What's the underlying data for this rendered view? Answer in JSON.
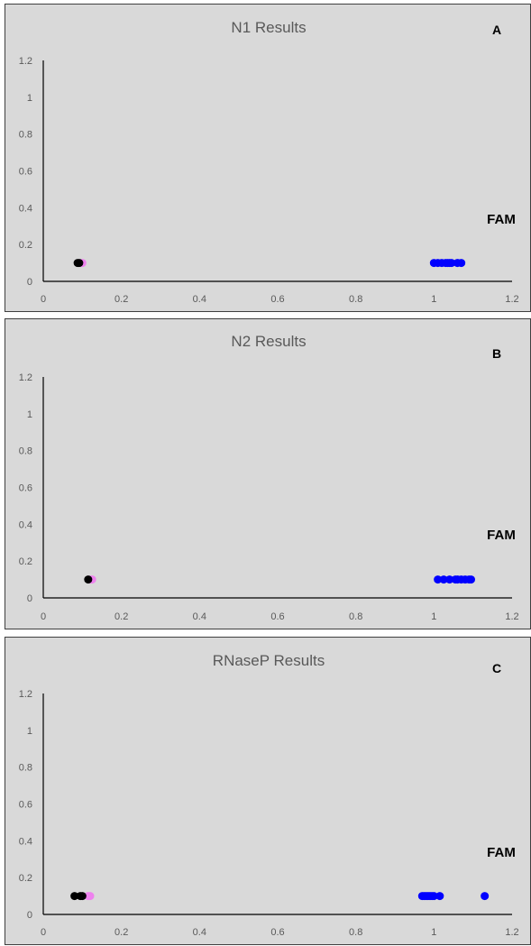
{
  "colors": {
    "background": "#d9d9d9",
    "axis": "#000000",
    "tick_text": "#595959"
  },
  "chart_data": [
    {
      "type": "scatter",
      "title": "N1 Results",
      "panel_label": "A",
      "annotation": "FAM",
      "xlim": [
        0,
        1.2
      ],
      "ylim": [
        0,
        1.2
      ],
      "x_ticks": [
        "0",
        "0.2",
        "0.4",
        "0.6",
        "0.8",
        "1",
        "1.2"
      ],
      "y_ticks": [
        "0",
        "0.2",
        "0.4",
        "0.6",
        "0.8",
        "1",
        "1.2"
      ],
      "grid": false,
      "series": [
        {
          "color": "#ee82ee",
          "points": [
            [
              0.1,
              0.1
            ],
            [
              0.095,
              0.1
            ]
          ]
        },
        {
          "color": "#000000",
          "points": [
            [
              0.088,
              0.1
            ],
            [
              0.092,
              0.1
            ]
          ]
        },
        {
          "color": "#0000ff",
          "points": [
            [
              1.0,
              0.1
            ],
            [
              1.01,
              0.1
            ],
            [
              1.02,
              0.1
            ],
            [
              1.03,
              0.1
            ],
            [
              1.035,
              0.1
            ],
            [
              1.04,
              0.1
            ],
            [
              1.045,
              0.1
            ],
            [
              1.06,
              0.1
            ],
            [
              1.07,
              0.1
            ]
          ]
        }
      ]
    },
    {
      "type": "scatter",
      "title": "N2 Results",
      "panel_label": "B",
      "annotation": "FAM",
      "xlim": [
        0,
        1.2
      ],
      "ylim": [
        0,
        1.2
      ],
      "x_ticks": [
        "0",
        "0.2",
        "0.4",
        "0.6",
        "0.8",
        "1",
        "1.2"
      ],
      "y_ticks": [
        "0",
        "0.2",
        "0.4",
        "0.6",
        "0.8",
        "1",
        "1.2"
      ],
      "grid": false,
      "series": [
        {
          "color": "#ee82ee",
          "points": [
            [
              0.125,
              0.1
            ],
            [
              0.12,
              0.1
            ]
          ]
        },
        {
          "color": "#000000",
          "points": [
            [
              0.115,
              0.1
            ]
          ]
        },
        {
          "color": "#0000ff",
          "points": [
            [
              1.01,
              0.1
            ],
            [
              1.025,
              0.1
            ],
            [
              1.04,
              0.1
            ],
            [
              1.055,
              0.1
            ],
            [
              1.06,
              0.1
            ],
            [
              1.07,
              0.1
            ],
            [
              1.08,
              0.1
            ],
            [
              1.09,
              0.1
            ],
            [
              1.095,
              0.1
            ]
          ]
        }
      ]
    },
    {
      "type": "scatter",
      "title": "RNaseP Results",
      "panel_label": "C",
      "annotation": "FAM",
      "xlim": [
        0,
        1.2
      ],
      "ylim": [
        0,
        1.2
      ],
      "x_ticks": [
        "0",
        "0.2",
        "0.4",
        "0.6",
        "0.8",
        "1",
        "1.2"
      ],
      "y_ticks": [
        "0",
        "0.2",
        "0.4",
        "0.6",
        "0.8",
        "1",
        "1.2"
      ],
      "grid": false,
      "series": [
        {
          "color": "#ee82ee",
          "points": [
            [
              0.12,
              0.1
            ],
            [
              0.115,
              0.1
            ]
          ]
        },
        {
          "color": "#000000",
          "points": [
            [
              0.08,
              0.1
            ],
            [
              0.095,
              0.1
            ],
            [
              0.1,
              0.1
            ]
          ]
        },
        {
          "color": "#0000ff",
          "points": [
            [
              0.97,
              0.1
            ],
            [
              0.975,
              0.1
            ],
            [
              0.98,
              0.1
            ],
            [
              0.985,
              0.1
            ],
            [
              0.99,
              0.1
            ],
            [
              0.995,
              0.1
            ],
            [
              1.0,
              0.1
            ],
            [
              1.015,
              0.1
            ],
            [
              1.13,
              0.1
            ]
          ]
        }
      ]
    }
  ]
}
